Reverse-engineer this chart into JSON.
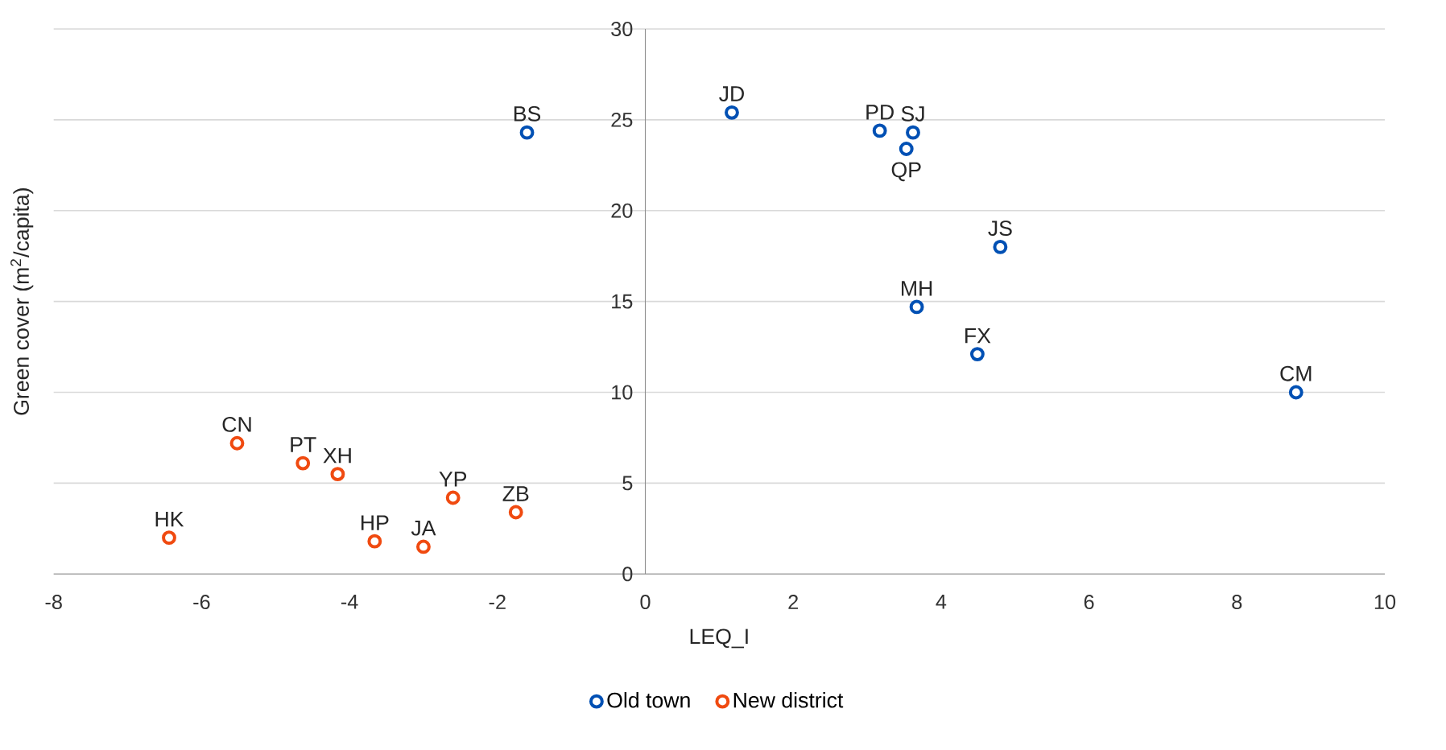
{
  "chart_data": {
    "type": "scatter",
    "xlabel": "LEQ_I",
    "ylabel": "Green cover (m$^{2}$/capita)",
    "xlim": [
      -8,
      10
    ],
    "ylim": [
      0,
      30
    ],
    "xticks": [
      -8,
      -6,
      -4,
      -2,
      0,
      2,
      4,
      6,
      8,
      10
    ],
    "yticks": [
      0,
      5,
      10,
      15,
      20,
      25,
      30
    ],
    "grid": "y",
    "legend": "bottom",
    "marker": "circle",
    "series": [
      {
        "name": "Old town",
        "color": "#0050b4",
        "x": [
          -1.6,
          1.17,
          3.17,
          3.62,
          3.53,
          4.8,
          3.67,
          4.49,
          8.8
        ],
        "values": [
          24.3,
          25.4,
          24.4,
          24.3,
          23.4,
          18.0,
          14.7,
          12.1,
          10.0
        ]
      },
      {
        "name": "New district",
        "color": "#f04a10",
        "x": [
          -5.52,
          -4.63,
          -4.16,
          -2.6,
          -1.75,
          -6.44,
          -3.66,
          -3.0
        ],
        "values": [
          7.2,
          6.1,
          5.5,
          4.2,
          3.4,
          2.0,
          1.8,
          1.5
        ]
      }
    ],
    "annotations": [
      {
        "text": "BS",
        "x": -1.6,
        "y": 24.3
      },
      {
        "text": "JD",
        "x": 1.17,
        "y": 25.4
      },
      {
        "text": "PD",
        "x": 3.17,
        "y": 24.4
      },
      {
        "text": "SJ",
        "x": 3.62,
        "y": 24.3
      },
      {
        "text": "QP",
        "x": 3.53,
        "y": 23.4
      },
      {
        "text": "JS",
        "x": 4.8,
        "y": 18.0
      },
      {
        "text": "MH",
        "x": 3.67,
        "y": 14.7
      },
      {
        "text": "FX",
        "x": 4.49,
        "y": 12.1
      },
      {
        "text": "CM",
        "x": 8.8,
        "y": 10.0
      },
      {
        "text": "CN",
        "x": -5.52,
        "y": 7.2
      },
      {
        "text": "PT",
        "x": -4.63,
        "y": 6.1
      },
      {
        "text": "XH",
        "x": -4.16,
        "y": 5.5
      },
      {
        "text": "YP",
        "x": -2.6,
        "y": 4.2
      },
      {
        "text": "ZB",
        "x": -1.75,
        "y": 3.4
      },
      {
        "text": "HK",
        "x": -6.44,
        "y": 2.0
      },
      {
        "text": "HP",
        "x": -3.66,
        "y": 1.8
      },
      {
        "text": "JA",
        "x": -3.0,
        "y": 1.5
      }
    ]
  }
}
